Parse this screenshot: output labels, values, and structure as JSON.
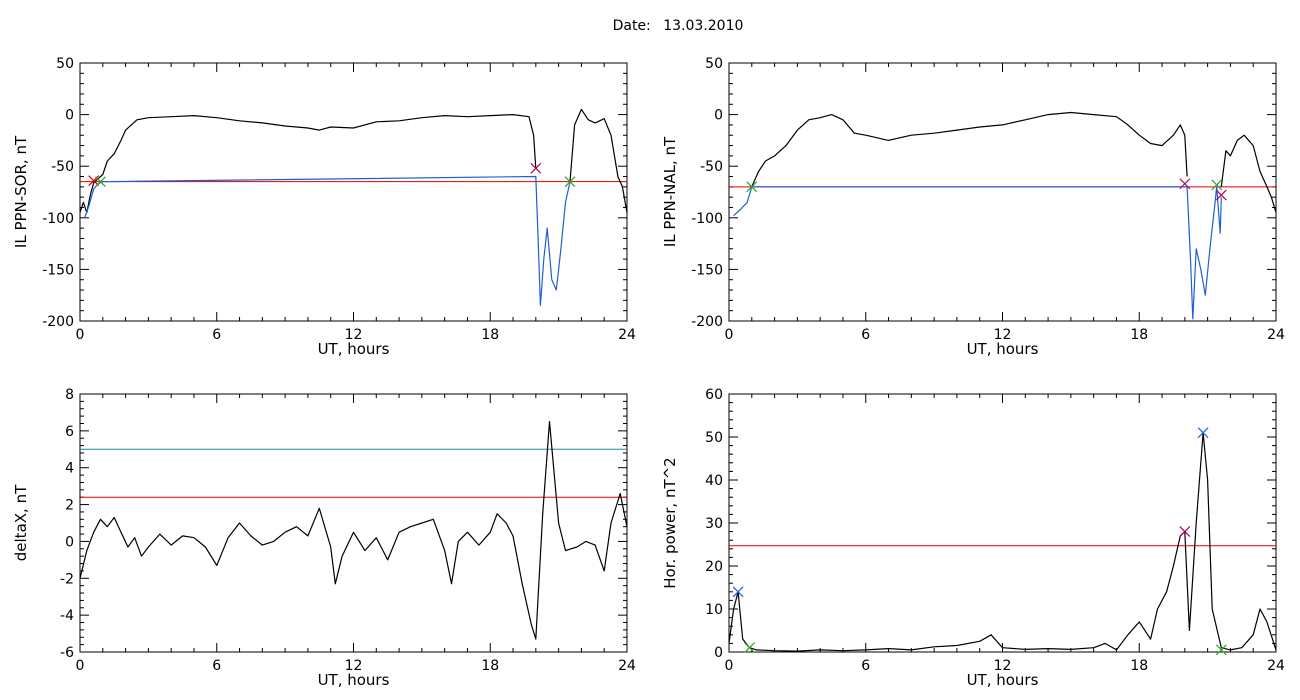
{
  "header": {
    "date_label": "Date:",
    "date_value": "13.03.2010"
  },
  "chart_data": [
    {
      "type": "line",
      "xlabel": "UT, hours",
      "ylabel": "IL PPN-SOR, nT",
      "xlim": [
        0,
        24
      ],
      "ylim": [
        -200,
        50
      ],
      "xticks": [
        0,
        6,
        12,
        18,
        24
      ],
      "yticks": [
        50,
        0,
        -50,
        -100,
        -150,
        -200
      ],
      "series": [
        {
          "color": "#000000",
          "values": [
            [
              0,
              -95
            ],
            [
              0.15,
              -85
            ],
            [
              0.3,
              -95
            ],
            [
              0.45,
              -78
            ],
            [
              0.6,
              -66
            ],
            [
              0.8,
              -62
            ],
            [
              1.0,
              -58
            ],
            [
              1.2,
              -45
            ],
            [
              1.5,
              -38
            ],
            [
              1.8,
              -25
            ],
            [
              2.0,
              -15
            ],
            [
              2.5,
              -5
            ],
            [
              3,
              -3
            ],
            [
              4,
              -2
            ],
            [
              5,
              -1
            ],
            [
              6,
              -3
            ],
            [
              7,
              -6
            ],
            [
              8,
              -8
            ],
            [
              9,
              -11
            ],
            [
              10,
              -13
            ],
            [
              10.5,
              -15
            ],
            [
              11,
              -12
            ],
            [
              12,
              -13
            ],
            [
              13,
              -7
            ],
            [
              14,
              -6
            ],
            [
              15,
              -3
            ],
            [
              16,
              -1
            ],
            [
              17,
              -2
            ],
            [
              18,
              -1
            ],
            [
              19,
              0
            ],
            [
              19.7,
              -2
            ],
            [
              19.9,
              -20
            ],
            [
              20.0,
              -52
            ]
          ]
        },
        {
          "color": "#1f5fd6",
          "values": [
            [
              0.2,
              -100
            ],
            [
              0.4,
              -88
            ],
            [
              0.6,
              -72
            ],
            [
              0.8,
              -67
            ],
            [
              1.0,
              -65
            ],
            [
              20.0,
              -60
            ],
            [
              20.1,
              -120
            ],
            [
              20.2,
              -185
            ],
            [
              20.35,
              -140
            ],
            [
              20.5,
              -110
            ],
            [
              20.7,
              -160
            ],
            [
              20.9,
              -170
            ],
            [
              21.1,
              -130
            ],
            [
              21.3,
              -85
            ],
            [
              21.5,
              -65
            ]
          ]
        },
        {
          "color": "#000000",
          "values": [
            [
              21.5,
              -65
            ],
            [
              21.7,
              -10
            ],
            [
              22.0,
              5
            ],
            [
              22.3,
              -5
            ],
            [
              22.6,
              -8
            ],
            [
              23.0,
              -4
            ],
            [
              23.3,
              -20
            ],
            [
              23.6,
              -60
            ],
            [
              23.8,
              -70
            ],
            [
              24,
              -95
            ]
          ]
        }
      ],
      "thresholds": [
        {
          "y": -65,
          "color": "#e00000"
        }
      ],
      "markers": [
        {
          "x": 0.6,
          "y": -64,
          "color": "#e00000"
        },
        {
          "x": 0.9,
          "y": -65,
          "color": "#2aa52a"
        },
        {
          "x": 20.0,
          "y": -52,
          "color": "#b00060"
        },
        {
          "x": 21.5,
          "y": -65,
          "color": "#2aa52a"
        }
      ]
    },
    {
      "type": "line",
      "xlabel": "UT, hours",
      "ylabel": "IL PPN-NAL, nT",
      "xlim": [
        0,
        24
      ],
      "ylim": [
        -200,
        50
      ],
      "xticks": [
        0,
        6,
        12,
        18,
        24
      ],
      "yticks": [
        50,
        0,
        -50,
        -100,
        -150,
        -200
      ],
      "series": [
        {
          "color": "#000000",
          "values": [
            [
              1.0,
              -70
            ],
            [
              1.3,
              -55
            ],
            [
              1.6,
              -45
            ],
            [
              2.0,
              -40
            ],
            [
              2.5,
              -30
            ],
            [
              3,
              -15
            ],
            [
              3.5,
              -5
            ],
            [
              4,
              -3
            ],
            [
              4.5,
              0
            ],
            [
              5,
              -5
            ],
            [
              5.5,
              -18
            ],
            [
              6,
              -20
            ],
            [
              7,
              -25
            ],
            [
              8,
              -20
            ],
            [
              9,
              -18
            ],
            [
              10,
              -15
            ],
            [
              11,
              -12
            ],
            [
              12,
              -10
            ],
            [
              13,
              -5
            ],
            [
              14,
              0
            ],
            [
              15,
              2
            ],
            [
              16,
              0
            ],
            [
              17,
              -2
            ],
            [
              17.5,
              -10
            ],
            [
              18,
              -20
            ],
            [
              18.5,
              -28
            ],
            [
              19,
              -30
            ],
            [
              19.5,
              -20
            ],
            [
              19.8,
              -10
            ],
            [
              20.0,
              -20
            ],
            [
              20.1,
              -60
            ]
          ]
        },
        {
          "color": "#1f5fd6",
          "values": [
            [
              0.2,
              -98
            ],
            [
              0.5,
              -92
            ],
            [
              0.8,
              -85
            ],
            [
              1.0,
              -70
            ],
            [
              20.1,
              -70
            ],
            [
              20.25,
              -140
            ],
            [
              20.35,
              -198
            ],
            [
              20.5,
              -130
            ],
            [
              20.7,
              -150
            ],
            [
              20.9,
              -175
            ],
            [
              21.1,
              -130
            ],
            [
              21.3,
              -90
            ],
            [
              21.4,
              -70
            ],
            [
              21.55,
              -115
            ],
            [
              21.6,
              -80
            ]
          ]
        },
        {
          "color": "#000000",
          "values": [
            [
              21.6,
              -70
            ],
            [
              21.8,
              -35
            ],
            [
              22.0,
              -40
            ],
            [
              22.3,
              -25
            ],
            [
              22.6,
              -20
            ],
            [
              23.0,
              -30
            ],
            [
              23.3,
              -55
            ],
            [
              23.6,
              -70
            ],
            [
              23.8,
              -80
            ],
            [
              24,
              -95
            ]
          ]
        }
      ],
      "thresholds": [
        {
          "y": -70,
          "color": "#e00000"
        }
      ],
      "markers": [
        {
          "x": 1.0,
          "y": -70,
          "color": "#2aa52a"
        },
        {
          "x": 20.0,
          "y": -67,
          "color": "#b00060"
        },
        {
          "x": 21.4,
          "y": -68,
          "color": "#2aa52a"
        },
        {
          "x": 21.6,
          "y": -78,
          "color": "#b00060"
        }
      ]
    },
    {
      "type": "line",
      "xlabel": "UT, hours",
      "ylabel": "deltaX, nT",
      "xlim": [
        0,
        24
      ],
      "ylim": [
        -6,
        8
      ],
      "xticks": [
        0,
        6,
        12,
        18,
        24
      ],
      "yticks": [
        8,
        6,
        4,
        2,
        0,
        -2,
        -4,
        -6
      ],
      "series": [
        {
          "color": "#000000",
          "values": [
            [
              0,
              -2
            ],
            [
              0.3,
              -0.5
            ],
            [
              0.6,
              0.5
            ],
            [
              0.9,
              1.2
            ],
            [
              1.2,
              0.8
            ],
            [
              1.5,
              1.3
            ],
            [
              1.8,
              0.5
            ],
            [
              2.1,
              -0.3
            ],
            [
              2.4,
              0.2
            ],
            [
              2.7,
              -0.8
            ],
            [
              3,
              -0.3
            ],
            [
              3.5,
              0.4
            ],
            [
              4,
              -0.2
            ],
            [
              4.5,
              0.3
            ],
            [
              5,
              0.2
            ],
            [
              5.5,
              -0.3
            ],
            [
              6,
              -1.3
            ],
            [
              6.5,
              0.2
            ],
            [
              7,
              1
            ],
            [
              7.5,
              0.3
            ],
            [
              8,
              -0.2
            ],
            [
              8.5,
              0
            ],
            [
              9,
              0.5
            ],
            [
              9.5,
              0.8
            ],
            [
              10,
              0.3
            ],
            [
              10.5,
              1.8
            ],
            [
              11,
              -0.3
            ],
            [
              11.2,
              -2.3
            ],
            [
              11.5,
              -0.8
            ],
            [
              12,
              0.5
            ],
            [
              12.5,
              -0.5
            ],
            [
              13,
              0.2
            ],
            [
              13.5,
              -1
            ],
            [
              14,
              0.5
            ],
            [
              14.5,
              0.8
            ],
            [
              15,
              1
            ],
            [
              15.5,
              1.2
            ],
            [
              16,
              -0.5
            ],
            [
              16.3,
              -2.3
            ],
            [
              16.6,
              0
            ],
            [
              17,
              0.5
            ],
            [
              17.5,
              -0.2
            ],
            [
              18,
              0.5
            ],
            [
              18.3,
              1.5
            ],
            [
              18.7,
              1
            ],
            [
              19,
              0.3
            ],
            [
              19.4,
              -2.3
            ],
            [
              19.8,
              -4.5
            ],
            [
              20.0,
              -5.3
            ],
            [
              20.3,
              1.5
            ],
            [
              20.6,
              6.5
            ],
            [
              21,
              1
            ],
            [
              21.3,
              -0.5
            ],
            [
              21.8,
              -0.3
            ],
            [
              22.2,
              0
            ],
            [
              22.6,
              -0.2
            ],
            [
              23,
              -1.6
            ],
            [
              23.3,
              1
            ],
            [
              23.7,
              2.6
            ],
            [
              24,
              0.8
            ]
          ]
        }
      ],
      "thresholds": [
        {
          "y": 5.0,
          "color": "#1f8c8c"
        },
        {
          "y": 2.4,
          "color": "#e00000"
        }
      ],
      "markers": []
    },
    {
      "type": "line",
      "xlabel": "UT, hours",
      "ylabel": "Hor. power, nT^2",
      "xlim": [
        0,
        24
      ],
      "ylim": [
        0,
        60
      ],
      "xticks": [
        0,
        6,
        12,
        18,
        24
      ],
      "yticks": [
        60,
        50,
        40,
        30,
        20,
        10,
        0
      ],
      "series": [
        {
          "color": "#000000",
          "values": [
            [
              0,
              2
            ],
            [
              0.2,
              10
            ],
            [
              0.4,
              14
            ],
            [
              0.6,
              3
            ],
            [
              0.9,
              1
            ],
            [
              1.2,
              0.5
            ],
            [
              2,
              0.3
            ],
            [
              3,
              0.2
            ],
            [
              4,
              0.5
            ],
            [
              5,
              0.3
            ],
            [
              6,
              0.5
            ],
            [
              7,
              0.8
            ],
            [
              8,
              0.5
            ],
            [
              9,
              1.2
            ],
            [
              10,
              1.5
            ],
            [
              11,
              2.5
            ],
            [
              11.5,
              4
            ],
            [
              12,
              1
            ],
            [
              13,
              0.6
            ],
            [
              14,
              0.8
            ],
            [
              15,
              0.6
            ],
            [
              16,
              1
            ],
            [
              16.5,
              2
            ],
            [
              17,
              0.5
            ],
            [
              17.5,
              4
            ],
            [
              18,
              7
            ],
            [
              18.5,
              3
            ],
            [
              18.8,
              10
            ],
            [
              19.2,
              14
            ],
            [
              19.5,
              20
            ],
            [
              19.8,
              27
            ],
            [
              20.0,
              28
            ],
            [
              20.2,
              5
            ],
            [
              20.5,
              30
            ],
            [
              20.8,
              51
            ],
            [
              21.0,
              40
            ],
            [
              21.2,
              10
            ],
            [
              21.6,
              1
            ],
            [
              22,
              0.5
            ],
            [
              22.5,
              1
            ],
            [
              23,
              4
            ],
            [
              23.3,
              10
            ],
            [
              23.6,
              7
            ],
            [
              24,
              0.5
            ]
          ]
        }
      ],
      "thresholds": [
        {
          "y": 24.7,
          "color": "#e00000"
        }
      ],
      "markers": [
        {
          "x": 0.4,
          "y": 14,
          "color": "#1f5fd6"
        },
        {
          "x": 0.9,
          "y": 1,
          "color": "#2aa52a"
        },
        {
          "x": 20.0,
          "y": 28,
          "color": "#b00060"
        },
        {
          "x": 20.8,
          "y": 51,
          "color": "#1f5fd6"
        },
        {
          "x": 21.6,
          "y": 0.5,
          "color": "#2aa52a"
        }
      ]
    }
  ]
}
